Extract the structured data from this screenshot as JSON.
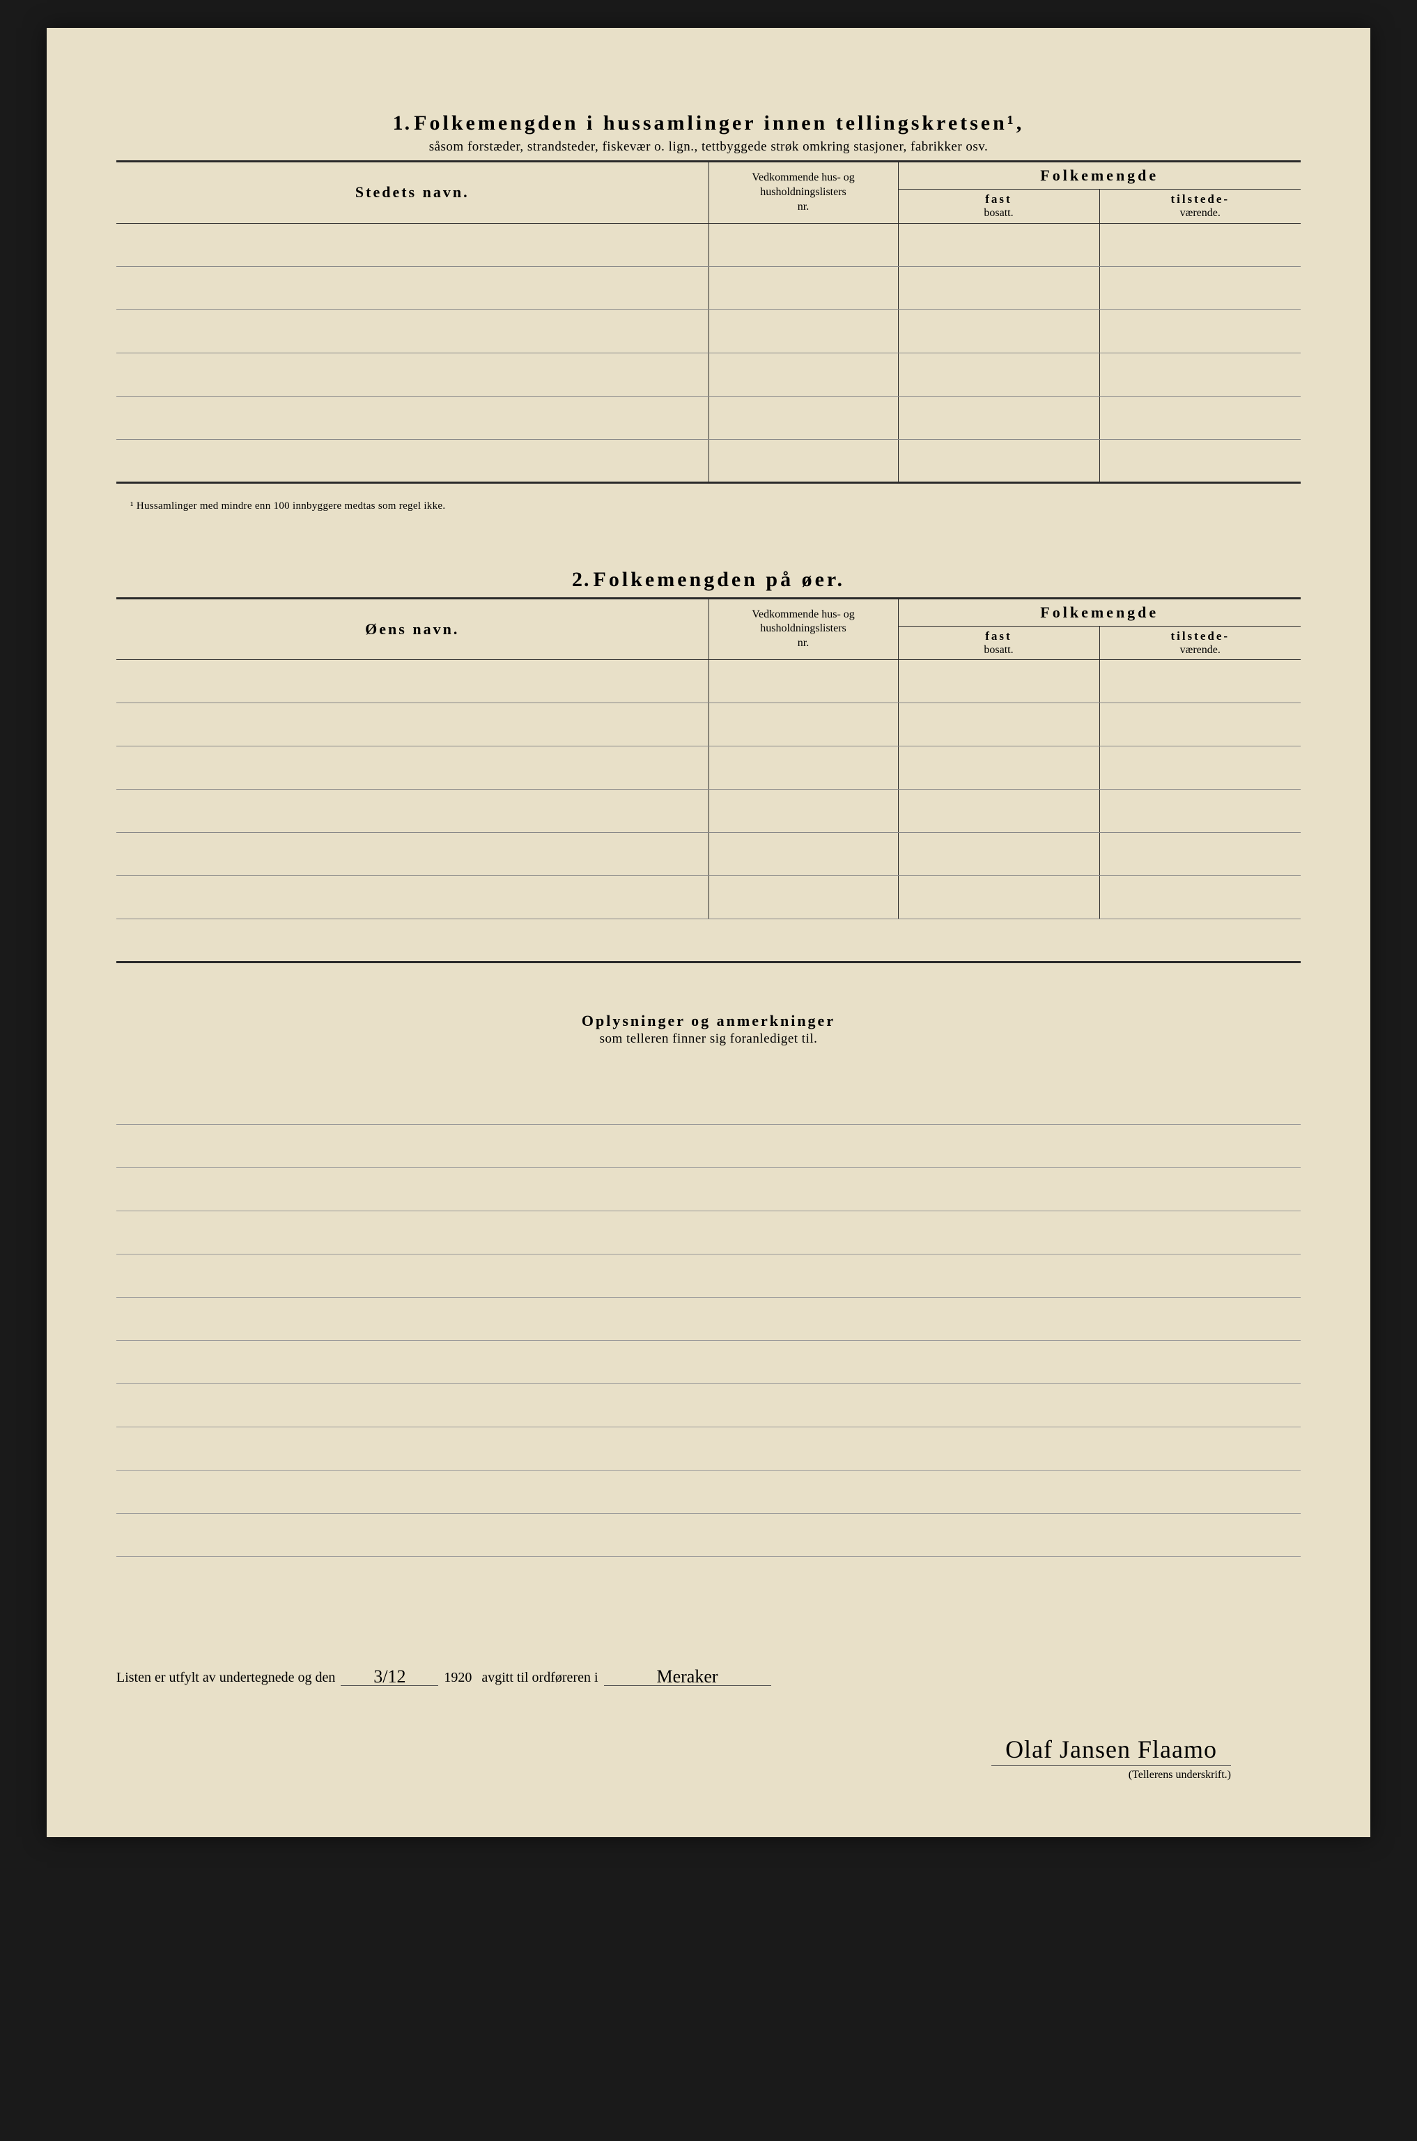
{
  "section1": {
    "number": "1.",
    "title": "Folkemengden i hussamlinger innen tellingskretsen¹,",
    "subtitle": "såsom forstæder, strandsteder, fiskevær o. lign., tettbyggede strøk omkring stasjoner, fabrikker osv.",
    "headers": {
      "place": "Stedets navn.",
      "ref_line1": "Vedkommende hus- og",
      "ref_line2": "husholdningslisters",
      "ref_line3": "nr.",
      "folk": "Folkemengde",
      "fast_b": "fast",
      "fast_l": "bosatt.",
      "til_b": "tilstede-",
      "til_l": "værende."
    },
    "rows": [
      "",
      "",
      "",
      "",
      "",
      ""
    ],
    "footnote": "¹  Hussamlinger med mindre enn 100 innbyggere medtas som regel ikke."
  },
  "section2": {
    "number": "2.",
    "title": "Folkemengden på øer.",
    "headers": {
      "place": "Øens navn.",
      "ref_line1": "Vedkommende hus- og",
      "ref_line2": "husholdningslisters",
      "ref_line3": "nr.",
      "folk": "Folkemengde",
      "fast_b": "fast",
      "fast_l": "bosatt.",
      "til_b": "tilstede-",
      "til_l": "værende."
    },
    "rows": [
      "",
      "",
      "",
      "",
      "",
      ""
    ]
  },
  "remarks": {
    "title_bold": "Oplysninger og anmerkninger",
    "title_light": "som telleren finner sig foranlediget til.",
    "line_count": 11
  },
  "signature": {
    "lead": "Listen er utfylt av undertegnede og den",
    "date": "3/12",
    "year": "1920",
    "mid": "avgitt til ordføreren i",
    "place": "Meraker",
    "name": "Olaf Jansen Flaamo",
    "label": "(Tellerens underskrift.)"
  },
  "colors": {
    "paper": "#e8e0c8",
    "ink": "#2a2a2a",
    "rule_light": "#888888",
    "background": "#1a1a1a"
  }
}
